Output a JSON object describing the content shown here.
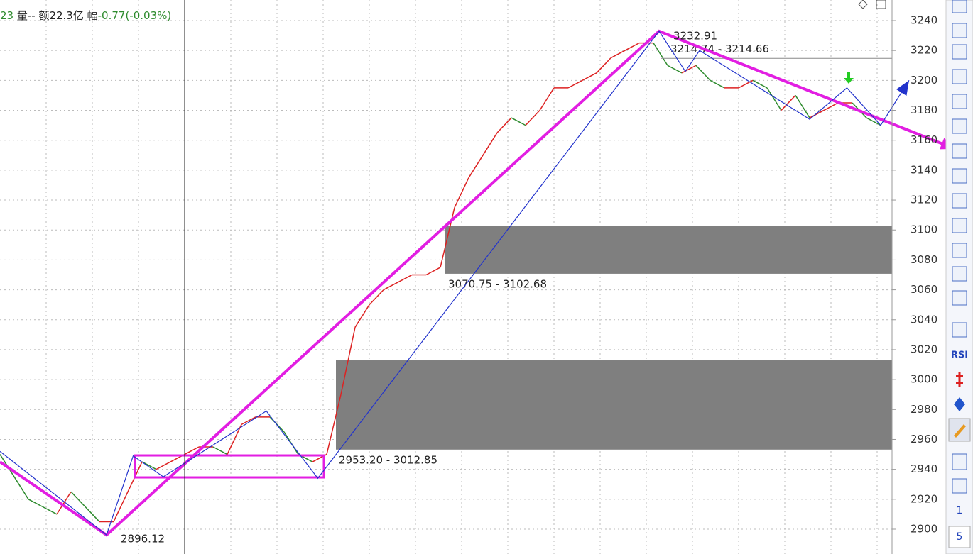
{
  "header": {
    "vol": "23",
    "vol_label": " 量--",
    "amount": " 额22.3亿 ",
    "change_label": "幅",
    "change": "-0.77(-0.03%)"
  },
  "chart_data": {
    "type": "line",
    "ylim": [
      2883.4,
      3253.75
    ],
    "yticks": [
      2900,
      2920,
      2940,
      2960,
      2980,
      3000,
      3020,
      3040,
      3060,
      3080,
      3100,
      3120,
      3140,
      3160,
      3180,
      3200,
      3220,
      3240
    ],
    "xlim": [
      0,
      251.2
    ],
    "grid": true,
    "series": [
      {
        "name": "close",
        "color": "#2e8b2e",
        "up_color": "#d22",
        "x": [
          0,
          4,
          8,
          12,
          16,
          20,
          24,
          28,
          32,
          36,
          40,
          44,
          48,
          52,
          56,
          60,
          64,
          68,
          72,
          76,
          80,
          84,
          88,
          92,
          96,
          100,
          104,
          108,
          112,
          116,
          120,
          124,
          128,
          132,
          136,
          140,
          144,
          148,
          152,
          156,
          160,
          164,
          168,
          172,
          176,
          180,
          184,
          188,
          192,
          196,
          200,
          204,
          208,
          212,
          216,
          220,
          224,
          228,
          232,
          236,
          240,
          244,
          248
        ],
        "values": [
          2950,
          2935,
          2920,
          2915,
          2910,
          2925,
          2915,
          2905,
          2905,
          2925,
          2945,
          2940,
          2945,
          2950,
          2955,
          2955,
          2950,
          2970,
          2975,
          2975,
          2965,
          2950,
          2945,
          2950,
          2990,
          3035,
          3050,
          3060,
          3065,
          3070,
          3070,
          3075,
          3115,
          3135,
          3150,
          3165,
          3175,
          3170,
          3180,
          3195,
          3195,
          3200,
          3205,
          3215,
          3220,
          3225,
          3225,
          3210,
          3205,
          3210,
          3200,
          3195,
          3195,
          3200,
          3195,
          3180,
          3190,
          3175,
          3180,
          3185,
          3185,
          3175,
          3170
        ]
      }
    ],
    "zigzag": {
      "color": "#2233cc",
      "x": [
        0,
        30,
        37.5,
        46,
        75,
        89.5,
        185.6,
        193,
        197,
        228,
        238.5,
        248,
        256
      ],
      "values": [
        2952,
        2896.12,
        2949,
        2935,
        2979,
        2934,
        3232.91,
        3206,
        3220,
        3174,
        3195,
        3170,
        3200
      ]
    },
    "trend": {
      "color": "#e21ee2",
      "x": [
        0,
        30,
        185.6,
        269
      ],
      "values": [
        2945,
        2896.12,
        3232.91,
        3154.2
      ]
    },
    "box": {
      "x": [
        38,
        91.2
      ],
      "values": [
        2934.6,
        2949.3
      ]
    },
    "zones": [
      {
        "x_start": 125.4,
        "low": 3070.75,
        "high": 3102.68,
        "label": "3070.75 - 3102.68"
      },
      {
        "x_start": 94.6,
        "low": 2953.2,
        "high": 3012.85,
        "label": "2953.20 - 3012.85"
      }
    ],
    "level": {
      "x_start": 186,
      "low": 3214.66,
      "high": 3214.74,
      "label": "3214.74 - 3214.66"
    },
    "low_point": {
      "x": 30,
      "value": 2896.12
    },
    "high_point": {
      "x": 185.6,
      "value": 3232.91
    }
  },
  "toolbar": [
    "RSI",
    "1",
    "5"
  ]
}
